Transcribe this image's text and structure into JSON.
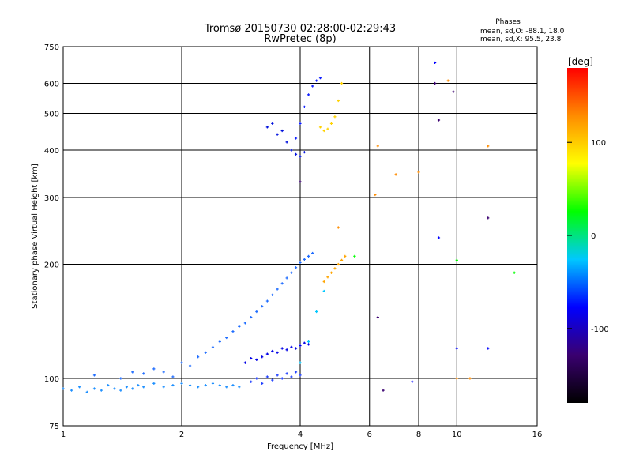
{
  "chart_data": {
    "type": "scatter",
    "title": "Tromsø 20150730 02:28:00-02:29:43",
    "subtitle": "RwPretec (8p)",
    "xlabel": "Frequency [MHz]",
    "ylabel": "Stationary phase Virtual Height [km]",
    "x_scale": "log",
    "y_scale": "log",
    "xlim": [
      1,
      16
    ],
    "ylim": [
      75,
      750
    ],
    "x_ticks": [
      1,
      2,
      4,
      6,
      8,
      10,
      16
    ],
    "y_ticks": [
      75,
      100,
      200,
      300,
      400,
      500,
      600,
      750
    ],
    "grid": true,
    "phases": {
      "heading": "Phases",
      "line1": "mean, sd,O: -88.1, 18.0",
      "line2": "mean, sd,X:  95.5, 23.8"
    },
    "colorbar": {
      "label": "[deg]",
      "range": [
        -180,
        180
      ],
      "ticks": [
        100,
        0,
        -100
      ],
      "colors": [
        "#000000",
        "#3a0070",
        "#0000ff",
        "#00c8ff",
        "#00ff00",
        "#ffff00",
        "#ff8c00",
        "#ff0000"
      ]
    },
    "series": [
      {
        "color": "#1e90ff",
        "x": [
          1.0,
          1.05,
          1.1,
          1.15,
          1.2,
          1.25,
          1.3,
          1.35,
          1.4,
          1.45,
          1.5,
          1.55,
          1.6,
          1.7,
          1.8,
          1.9,
          2.0,
          2.1,
          2.2,
          2.3,
          2.4,
          2.5,
          2.6,
          2.7,
          2.8
        ],
        "y": [
          94,
          93,
          95,
          92,
          94,
          93,
          96,
          94,
          93,
          95,
          94,
          96,
          95,
          97,
          95,
          96,
          97,
          96,
          95,
          96,
          97,
          96,
          95,
          96,
          95
        ]
      },
      {
        "color": "#1e6cff",
        "x": [
          1.2,
          1.4,
          1.5,
          1.6,
          1.7,
          1.8,
          1.9,
          2.0,
          2.1,
          2.2,
          2.3,
          2.4,
          2.5,
          2.6,
          2.7,
          2.8,
          2.9,
          3.0,
          3.1,
          3.2,
          3.3,
          3.4,
          3.5,
          3.6,
          3.7,
          3.8,
          3.9,
          4.0,
          4.1,
          4.2,
          4.3
        ],
        "y": [
          102,
          100,
          104,
          103,
          106,
          104,
          101,
          110,
          108,
          114,
          117,
          121,
          125,
          128,
          133,
          137,
          140,
          145,
          150,
          155,
          160,
          166,
          172,
          178,
          184,
          190,
          196,
          202,
          206,
          210,
          214
        ]
      },
      {
        "color": "#0000e6",
        "x": [
          2.9,
          3.0,
          3.1,
          3.2,
          3.3,
          3.4,
          3.5,
          3.6,
          3.7,
          3.8,
          3.9,
          4.0,
          4.1,
          4.2
        ],
        "y": [
          110,
          113,
          112,
          114,
          116,
          118,
          117,
          120,
          119,
          121,
          120,
          122,
          124,
          123
        ]
      },
      {
        "color": "#2040ff",
        "x": [
          3.0,
          3.1,
          3.2,
          3.3,
          3.4,
          3.5,
          3.6,
          3.7,
          3.8,
          3.9,
          4.0
        ],
        "y": [
          98,
          100,
          97,
          101,
          99,
          102,
          100,
          103,
          101,
          104,
          102
        ]
      },
      {
        "color": "#0010dd",
        "x": [
          3.3,
          3.4,
          3.5,
          3.6,
          3.7,
          3.8,
          3.9,
          4.0,
          4.1
        ],
        "y": [
          460,
          470,
          440,
          450,
          420,
          400,
          390,
          385,
          395
        ]
      },
      {
        "color": "#1020ff",
        "x": [
          3.9,
          4.0,
          4.1,
          4.2,
          4.3,
          4.4,
          4.5
        ],
        "y": [
          430,
          470,
          520,
          560,
          590,
          610,
          620
        ]
      },
      {
        "color": "#ffd200",
        "x": [
          4.5,
          4.6,
          4.7,
          4.8,
          4.9,
          5.0,
          5.1
        ],
        "y": [
          460,
          450,
          455,
          470,
          490,
          540,
          600
        ]
      },
      {
        "color": "#ffa500",
        "x": [
          4.6,
          4.7,
          4.8,
          4.9,
          5.0,
          5.1,
          5.2
        ],
        "y": [
          180,
          185,
          190,
          195,
          200,
          205,
          210
        ]
      },
      {
        "color": "#00c8ff",
        "x": [
          4.0,
          4.2,
          4.4,
          4.6
        ],
        "y": [
          110,
          125,
          150,
          170
        ]
      },
      {
        "color": "#ff8c00",
        "x": [
          5.0,
          6.3,
          8.0,
          9.5,
          10.0,
          10.8,
          12.0,
          6.2,
          7.0
        ],
        "y": [
          250,
          410,
          350,
          610,
          100,
          100,
          410,
          305,
          345
        ]
      },
      {
        "color": "#3a0070",
        "x": [
          6.3,
          8.8,
          9.0,
          9.8,
          12.0,
          4.0,
          6.5
        ],
        "y": [
          145,
          600,
          480,
          570,
          265,
          330,
          93
        ]
      },
      {
        "color": "#00ff00",
        "x": [
          10.0,
          14.0,
          5.5
        ],
        "y": [
          205,
          190,
          210
        ]
      },
      {
        "color": "#0000ff",
        "x": [
          9.0,
          8.8,
          10.0,
          12.0,
          7.7
        ],
        "y": [
          235,
          680,
          120,
          120,
          98
        ]
      }
    ]
  }
}
